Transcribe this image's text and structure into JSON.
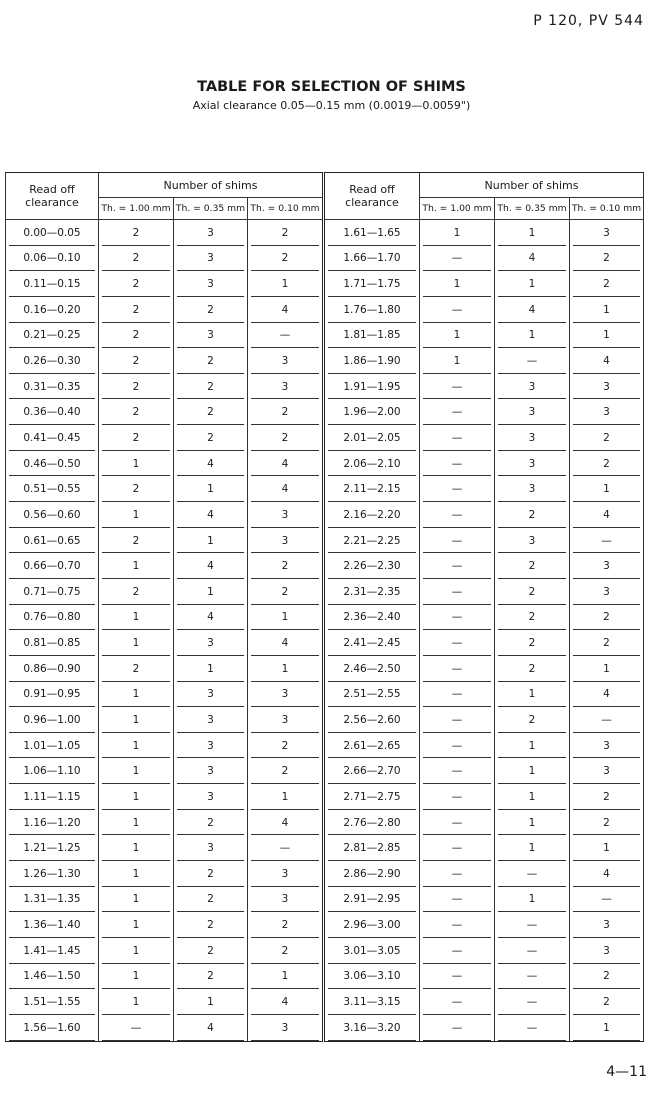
{
  "page_ref": "P 120, PV 544",
  "title": "TABLE FOR SELECTION OF SHIMS",
  "subtitle": "Axial clearance 0.05—0.15 mm (0.0019—0.0059\")",
  "page_number": "4—11",
  "table": {
    "read_off_header": "Read off clearance",
    "group_header": "Number of shims",
    "sub_headers": [
      "Th. = 1.00 mm",
      "Th. = 0.35 mm",
      "Th. = 0.10 mm"
    ],
    "left_rows": [
      [
        "0.00—0.05",
        "2",
        "3",
        "2"
      ],
      [
        "0.06—0.10",
        "2",
        "3",
        "2"
      ],
      [
        "0.11—0.15",
        "2",
        "3",
        "1"
      ],
      [
        "0.16—0.20",
        "2",
        "2",
        "4"
      ],
      [
        "0.21—0.25",
        "2",
        "3",
        "—"
      ],
      [
        "0.26—0.30",
        "2",
        "2",
        "3"
      ],
      [
        "0.31—0.35",
        "2",
        "2",
        "3"
      ],
      [
        "0.36—0.40",
        "2",
        "2",
        "2"
      ],
      [
        "0.41—0.45",
        "2",
        "2",
        "2"
      ],
      [
        "0.46—0.50",
        "1",
        "4",
        "4"
      ],
      [
        "0.51—0.55",
        "2",
        "1",
        "4"
      ],
      [
        "0.56—0.60",
        "1",
        "4",
        "3"
      ],
      [
        "0.61—0.65",
        "2",
        "1",
        "3"
      ],
      [
        "0.66—0.70",
        "1",
        "4",
        "2"
      ],
      [
        "0.71—0.75",
        "2",
        "1",
        "2"
      ],
      [
        "0.76—0.80",
        "1",
        "4",
        "1"
      ],
      [
        "0.81—0.85",
        "1",
        "3",
        "4"
      ],
      [
        "0.86—0.90",
        "2",
        "1",
        "1"
      ],
      [
        "0.91—0.95",
        "1",
        "3",
        "3"
      ],
      [
        "0.96—1.00",
        "1",
        "3",
        "3"
      ],
      [
        "1.01—1.05",
        "1",
        "3",
        "2"
      ],
      [
        "1.06—1.10",
        "1",
        "3",
        "2"
      ],
      [
        "1.11—1.15",
        "1",
        "3",
        "1"
      ],
      [
        "1.16—1.20",
        "1",
        "2",
        "4"
      ],
      [
        "1.21—1.25",
        "1",
        "3",
        "—"
      ],
      [
        "1.26—1.30",
        "1",
        "2",
        "3"
      ],
      [
        "1.31—1.35",
        "1",
        "2",
        "3"
      ],
      [
        "1.36—1.40",
        "1",
        "2",
        "2"
      ],
      [
        "1.41—1.45",
        "1",
        "2",
        "2"
      ],
      [
        "1.46—1.50",
        "1",
        "2",
        "1"
      ],
      [
        "1.51—1.55",
        "1",
        "1",
        "4"
      ],
      [
        "1.56—1.60",
        "—",
        "4",
        "3"
      ]
    ],
    "right_rows": [
      [
        "1.61—1.65",
        "1",
        "1",
        "3"
      ],
      [
        "1.66—1.70",
        "—",
        "4",
        "2"
      ],
      [
        "1.71—1.75",
        "1",
        "1",
        "2"
      ],
      [
        "1.76—1.80",
        "—",
        "4",
        "1"
      ],
      [
        "1.81—1.85",
        "1",
        "1",
        "1"
      ],
      [
        "1.86—1.90",
        "1",
        "—",
        "4"
      ],
      [
        "1.91—1.95",
        "—",
        "3",
        "3"
      ],
      [
        "1.96—2.00",
        "—",
        "3",
        "3"
      ],
      [
        "2.01—2.05",
        "—",
        "3",
        "2"
      ],
      [
        "2.06—2.10",
        "—",
        "3",
        "2"
      ],
      [
        "2.11—2.15",
        "—",
        "3",
        "1"
      ],
      [
        "2.16—2.20",
        "—",
        "2",
        "4"
      ],
      [
        "2.21—2.25",
        "—",
        "3",
        "—"
      ],
      [
        "2.26—2.30",
        "—",
        "2",
        "3"
      ],
      [
        "2.31—2.35",
        "—",
        "2",
        "3"
      ],
      [
        "2.36—2.40",
        "—",
        "2",
        "2"
      ],
      [
        "2.41—2.45",
        "—",
        "2",
        "2"
      ],
      [
        "2.46—2.50",
        "—",
        "2",
        "1"
      ],
      [
        "2.51—2.55",
        "—",
        "1",
        "4"
      ],
      [
        "2.56—2.60",
        "—",
        "2",
        "—"
      ],
      [
        "2.61—2.65",
        "—",
        "1",
        "3"
      ],
      [
        "2.66—2.70",
        "—",
        "1",
        "3"
      ],
      [
        "2.71—2.75",
        "—",
        "1",
        "2"
      ],
      [
        "2.76—2.80",
        "—",
        "1",
        "2"
      ],
      [
        "2.81—2.85",
        "—",
        "1",
        "1"
      ],
      [
        "2.86—2.90",
        "—",
        "—",
        "4"
      ],
      [
        "2.91—2.95",
        "—",
        "1",
        "—"
      ],
      [
        "2.96—3.00",
        "—",
        "—",
        "3"
      ],
      [
        "3.01—3.05",
        "—",
        "—",
        "3"
      ],
      [
        "3.06—3.10",
        "—",
        "—",
        "2"
      ],
      [
        "3.11—3.15",
        "—",
        "—",
        "2"
      ],
      [
        "3.16—3.20",
        "—",
        "—",
        "1"
      ]
    ]
  }
}
